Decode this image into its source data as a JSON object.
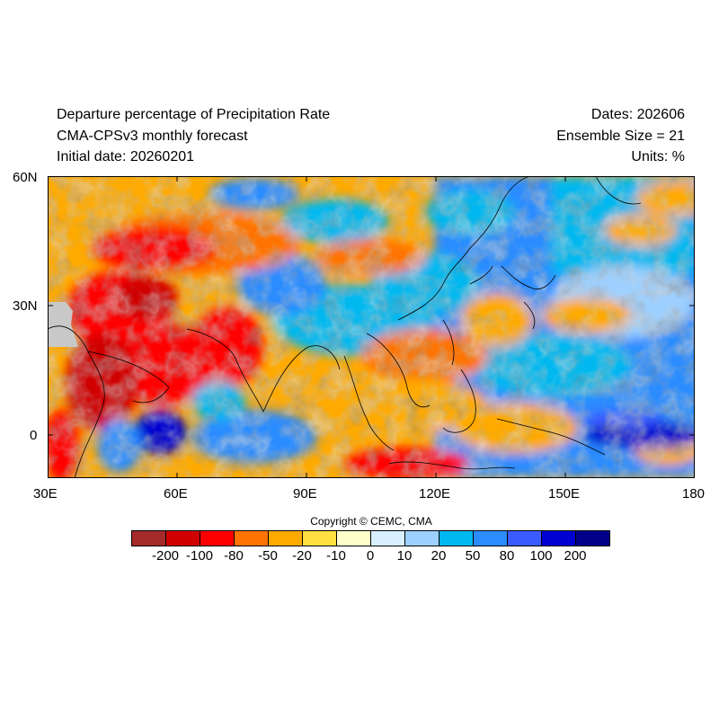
{
  "header": {
    "title": "Departure percentage of Precipitation Rate",
    "subtitle": "CMA-CPSv3 monthly forecast",
    "initial_date": "Initial date: 20260201",
    "dates": "Dates: 202606",
    "ensemble": "Ensemble Size = 21",
    "units": "Units: %"
  },
  "axes": {
    "y_labels": [
      "60N",
      "30N",
      "0"
    ],
    "x_labels": [
      "30E",
      "60E",
      "90E",
      "120E",
      "150E",
      "180"
    ],
    "lon_range": [
      30,
      180
    ],
    "lat_range": [
      -10,
      60
    ]
  },
  "colorbar": {
    "labels": [
      "-200",
      "-100",
      "-80",
      "-50",
      "-20",
      "-10",
      "0",
      "10",
      "20",
      "50",
      "80",
      "100",
      "200"
    ],
    "colors": [
      "#a52a2a",
      "#d10000",
      "#ff0000",
      "#ff7300",
      "#ffaa00",
      "#ffe040",
      "#ffffcc",
      "#d8f0ff",
      "#9ed0ff",
      "#00b8f0",
      "#2a8cff",
      "#3a5cff",
      "#0000d0",
      "#00008a"
    ]
  },
  "copyright": "Copyright © CEMC, CMA"
}
